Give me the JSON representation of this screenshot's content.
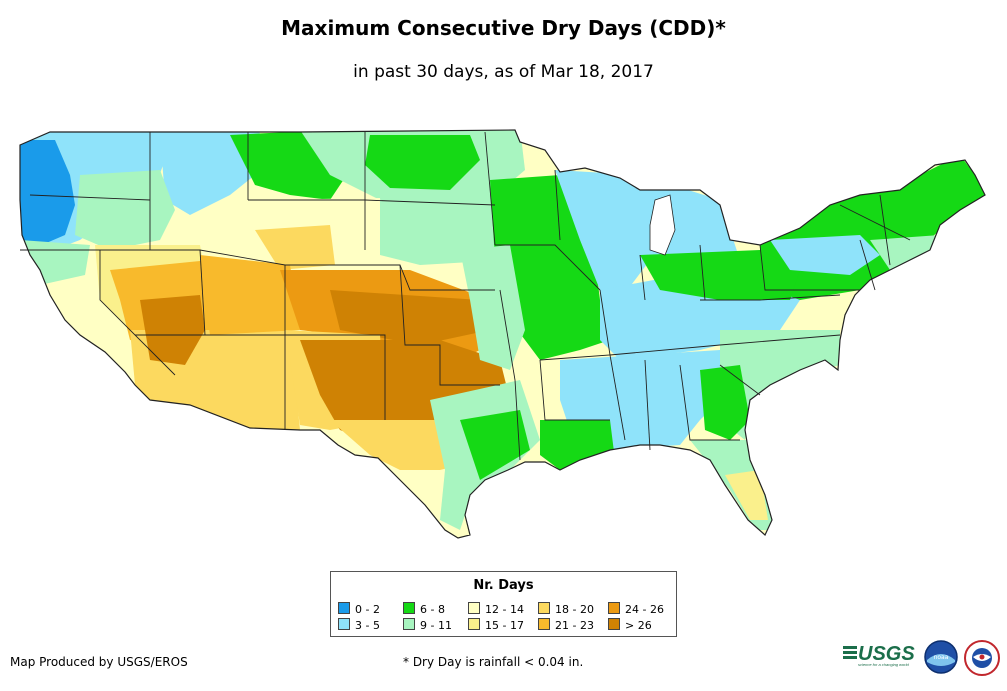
{
  "title": "Maximum Consecutive Dry Days (CDD)*",
  "subtitle": "in past 30 days, as of Mar 18, 2017",
  "legend": {
    "title": "Nr. Days",
    "items": [
      {
        "label": "0 - 2",
        "color": "#1a9bea"
      },
      {
        "label": "3 - 5",
        "color": "#8fe3fa"
      },
      {
        "label": "6 - 8",
        "color": "#15d915"
      },
      {
        "label": "9 - 11",
        "color": "#a8f5c0"
      },
      {
        "label": "12 - 14",
        "color": "#ffffc4"
      },
      {
        "label": "15 - 17",
        "color": "#faf08c"
      },
      {
        "label": "18 - 20",
        "color": "#fcd95f"
      },
      {
        "label": "21 - 23",
        "color": "#f8ba2c"
      },
      {
        "label": "24 - 26",
        "color": "#ec9a12"
      },
      {
        "label": "> 26",
        "color": "#cf8204"
      }
    ]
  },
  "credit": "Map Produced by USGS/EROS",
  "footnote": "* Dry Day is rainfall < 0.04 in.",
  "logos": {
    "usgs_text": "USGS",
    "usgs_tagline": "science for a changing world",
    "noaa_text": "noaa"
  }
}
